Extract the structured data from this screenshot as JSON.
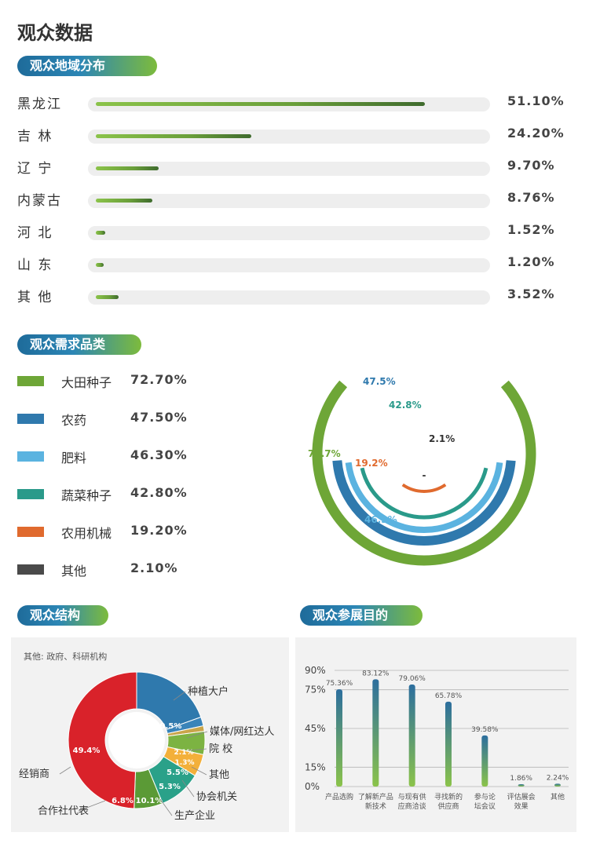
{
  "page_title": "观众数据",
  "sections": {
    "region": "观众地域分布",
    "demand": "观众需求品类",
    "structure": "观众结构",
    "purpose": "观众参展目的"
  },
  "region_items": [
    {
      "label": "黑龙江",
      "value": 51.1,
      "value_text": "51.10%"
    },
    {
      "label": "吉 林",
      "value": 24.2,
      "value_text": "24.20%"
    },
    {
      "label": "辽 宁",
      "value": 9.7,
      "value_text": "9.70%"
    },
    {
      "label": "内蒙古",
      "value": 8.76,
      "value_text": "8.76%"
    },
    {
      "label": "河 北",
      "value": 1.52,
      "value_text": "1.52%"
    },
    {
      "label": "山 东",
      "value": 1.2,
      "value_text": "1.20%"
    },
    {
      "label": "其 他",
      "value": 3.52,
      "value_text": "3.52%"
    }
  ],
  "demand_items": [
    {
      "label": "大田种子",
      "value": 72.7,
      "value_text": "72.70%",
      "ring_label": "72.7%",
      "color": "#6ea637"
    },
    {
      "label": "农药",
      "value": 47.5,
      "value_text": "47.50%",
      "ring_label": "47.5%",
      "color": "#2f79ad"
    },
    {
      "label": "肥料",
      "value": 46.3,
      "value_text": "46.30%",
      "ring_label": "46.3%",
      "color": "#5bb3e0"
    },
    {
      "label": "蔬菜种子",
      "value": 42.8,
      "value_text": "42.80%",
      "ring_label": "42.8%",
      "color": "#2a9a8a"
    },
    {
      "label": "农用机械",
      "value": 19.2,
      "value_text": "19.20%",
      "ring_label": "19.2%",
      "color": "#e06a2e"
    },
    {
      "label": "其他",
      "value": 2.1,
      "value_text": "2.10%",
      "ring_label": "2.1%",
      "color": "#4a4a4a"
    }
  ],
  "structure": {
    "note": "其他: 政府、科研机构",
    "slices": [
      {
        "label": "种植大户",
        "value": 19.5,
        "value_text": "19.5%",
        "color": "#2f79ad"
      },
      {
        "label": "媒体/网红达人",
        "value": 2.1,
        "value_text": "2.1%",
        "color": "#3a84b9"
      },
      {
        "label": "院 校",
        "value": 1.3,
        "value_text": "1.3%",
        "color": "#c9a54a"
      },
      {
        "label": "其他",
        "value": 5.5,
        "value_text": "5.5%",
        "color": "#7cb342"
      },
      {
        "label": "协会机关",
        "value": 5.3,
        "value_text": "5.3%",
        "color": "#f3b03a"
      },
      {
        "label": "生产企业",
        "value": 10.1,
        "value_text": "10.1%",
        "color": "#2aa189"
      },
      {
        "label": "合作社代表",
        "value": 6.8,
        "value_text": "6.8%",
        "color": "#5b9a36"
      },
      {
        "label": "经销商",
        "value": 49.4,
        "value_text": "49.4%",
        "color": "#d9222a"
      }
    ]
  },
  "purpose": {
    "y_ticks": [
      "90%",
      "75%",
      "45%",
      "15%",
      "0%"
    ],
    "y_tick_values": [
      90,
      75,
      45,
      15,
      0
    ],
    "bars": [
      {
        "label_lines": [
          "产品选购"
        ],
        "value": 75.36,
        "value_text": "75.36%"
      },
      {
        "label_lines": [
          "了解新产品",
          "新技术"
        ],
        "value": 83.12,
        "value_text": "83.12%"
      },
      {
        "label_lines": [
          "与现有供",
          "应商洽谈"
        ],
        "value": 79.06,
        "value_text": "79.06%"
      },
      {
        "label_lines": [
          "寻找新的",
          "供应商"
        ],
        "value": 65.78,
        "value_text": "65.78%"
      },
      {
        "label_lines": [
          "参与论",
          "坛会议"
        ],
        "value": 39.58,
        "value_text": "39.58%"
      },
      {
        "label_lines": [
          "评估展会",
          "效果"
        ],
        "value": 1.86,
        "value_text": "1.86%"
      },
      {
        "label_lines": [
          "其他"
        ],
        "value": 2.24,
        "value_text": "2.24%"
      }
    ]
  },
  "chart_data": [
    {
      "type": "bar",
      "title": "观众地域分布",
      "categories": [
        "黑龙江",
        "吉 林",
        "辽 宁",
        "内蒙古",
        "河 北",
        "山 东",
        "其 他"
      ],
      "values": [
        51.1,
        24.2,
        9.7,
        8.76,
        1.52,
        1.2,
        3.52
      ],
      "orientation": "horizontal"
    },
    {
      "type": "pie",
      "title": "观众需求品类",
      "categories": [
        "大田种子",
        "农药",
        "肥料",
        "蔬菜种子",
        "农用机械",
        "其他"
      ],
      "values": [
        72.7,
        47.5,
        46.3,
        42.8,
        19.2,
        2.1
      ],
      "style": "concentric-rings"
    },
    {
      "type": "pie",
      "title": "观众结构",
      "categories": [
        "种植大户",
        "媒体/网红达人",
        "院 校",
        "其他",
        "协会机关",
        "生产企业",
        "合作社代表",
        "经销商"
      ],
      "values": [
        19.5,
        2.1,
        1.3,
        5.5,
        5.3,
        10.1,
        6.8,
        49.4
      ],
      "style": "donut"
    },
    {
      "type": "bar",
      "title": "观众参展目的",
      "categories": [
        "产品选购",
        "了解新产品新技术",
        "与现有供应商洽谈",
        "寻找新的供应商",
        "参与论坛会议",
        "评估展会效果",
        "其他"
      ],
      "values": [
        75.36,
        83.12,
        79.06,
        65.78,
        39.58,
        1.86,
        2.24
      ],
      "ylim": [
        0,
        90
      ],
      "y_ticks": [
        0,
        15,
        45,
        75,
        90
      ]
    }
  ]
}
